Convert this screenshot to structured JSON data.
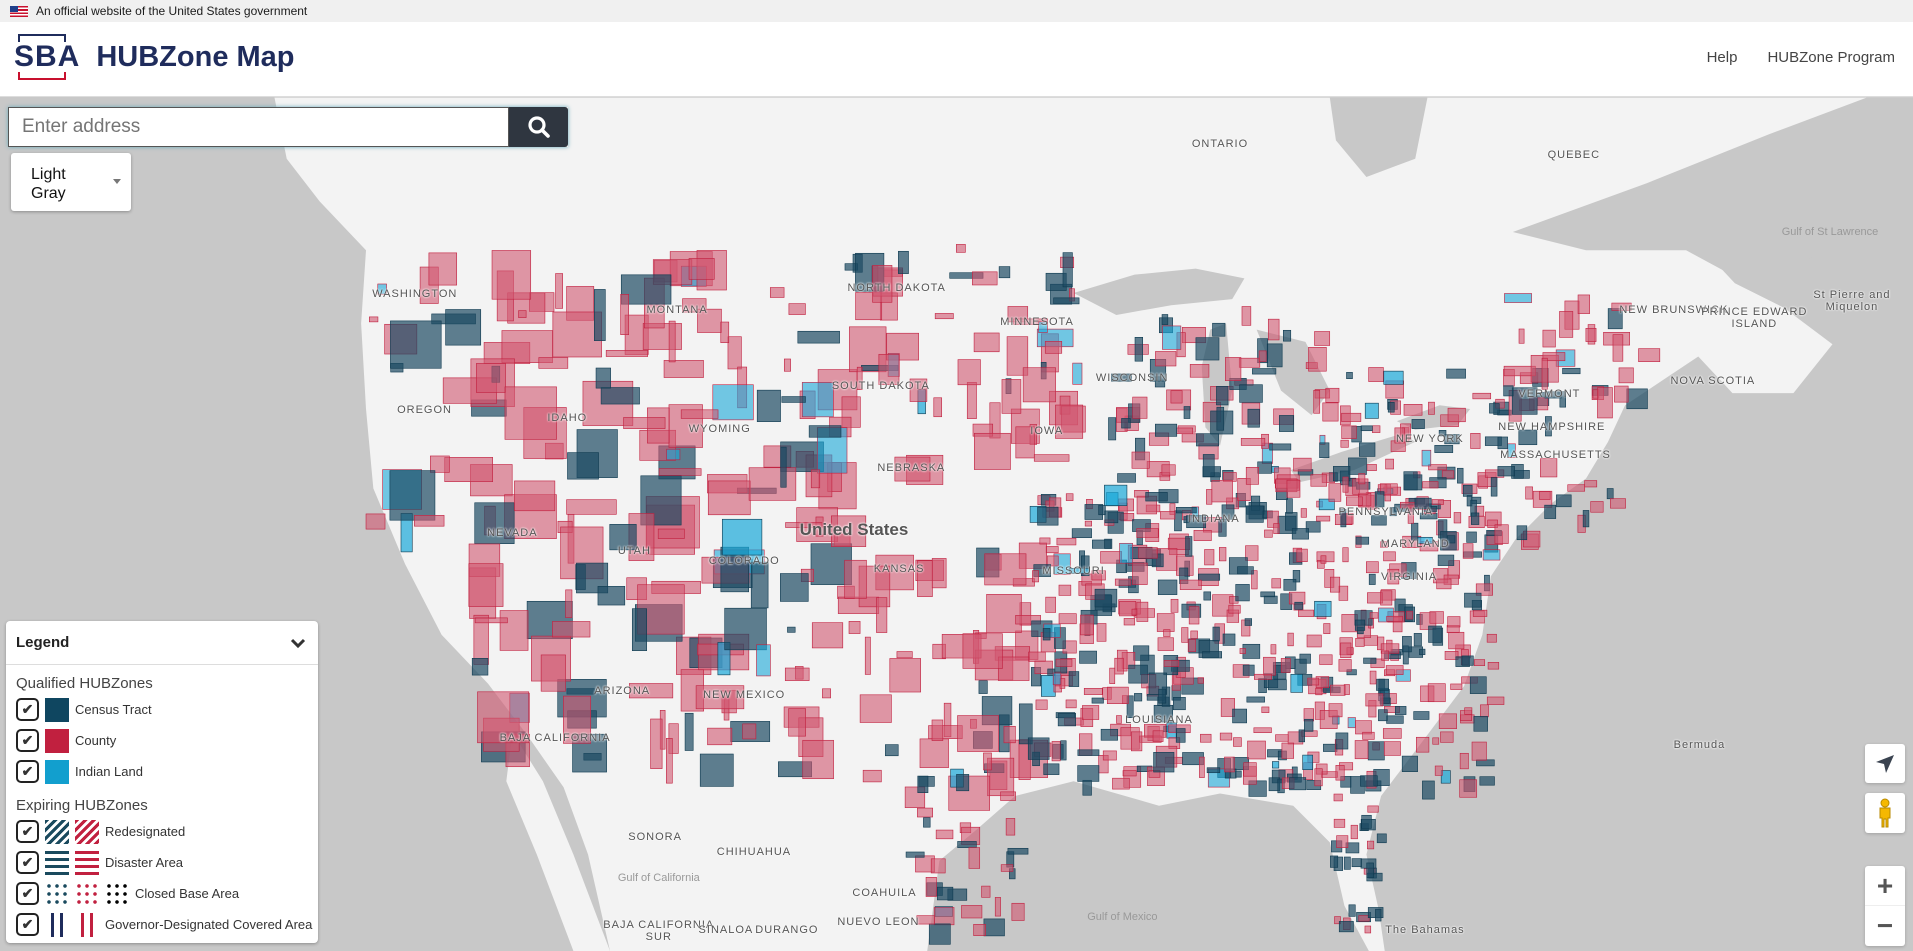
{
  "gov_banner": {
    "text": "An official website of the United States government"
  },
  "header": {
    "logo_text": "SBA",
    "title": "HUBZone Map",
    "nav": [
      {
        "label": "Help"
      },
      {
        "label": "HUBZone Program"
      }
    ]
  },
  "search": {
    "placeholder": "Enter address",
    "value": ""
  },
  "basemap": {
    "selected": "Light Gray"
  },
  "legend": {
    "title": "Legend",
    "qualified_title": "Qualified HUBZones",
    "qualified": [
      {
        "label": "Census Tract",
        "color": "#0f4660"
      },
      {
        "label": "County",
        "color": "#c1203f"
      },
      {
        "label": "Indian Land",
        "color": "#129fce"
      }
    ],
    "expiring_title": "Expiring HUBZones",
    "expiring": [
      {
        "label": "Redesignated"
      },
      {
        "label": "Disaster Area"
      },
      {
        "label": "Closed Base Area"
      },
      {
        "label": "Governor-Designated Covered Area"
      }
    ]
  },
  "map_labels": [
    "ONTARIO",
    "QUEBEC",
    "NEW BRUNSWICK",
    "PRINCE EDWARD ISLAND",
    "NOVA SCOTIA",
    "St Pierre and Miquelon",
    "WASHINGTON",
    "MONTANA",
    "NORTH DAKOTA",
    "MINNESOTA",
    "SOUTH DAKOTA",
    "WISCONSIN",
    "OREGON",
    "IDAHO",
    "WYOMING",
    "IOWA",
    "NEBRASKA",
    "NEVADA",
    "UTAH",
    "COLORADO",
    "United States",
    "KANSAS",
    "MISSOURI",
    "INDIANA",
    "ARIZONA",
    "NEW MEXICO",
    "VIRGINIA",
    "MARYLAND",
    "LOUISIANA",
    "BAJA CALIFORNIA",
    "SONORA",
    "CHIHUAHUA",
    "COAHUILA",
    "NUEVO LEON",
    "BAJA CALIFORNIA SUR",
    "SINALOA",
    "DURANGO",
    "VERMONT",
    "NEW HAMPSHIRE",
    "NEW YORK",
    "MASSACHUSETTS",
    "PENNSYLVANIA",
    "Bermuda",
    "Gulf of Mexico",
    "Gulf of California",
    "Gulf of St Lawrence",
    "The Bahamas"
  ],
  "controls": {
    "locate": "locate-icon",
    "street_view": "pegman-icon",
    "zoom_in": "+",
    "zoom_out": "−"
  }
}
